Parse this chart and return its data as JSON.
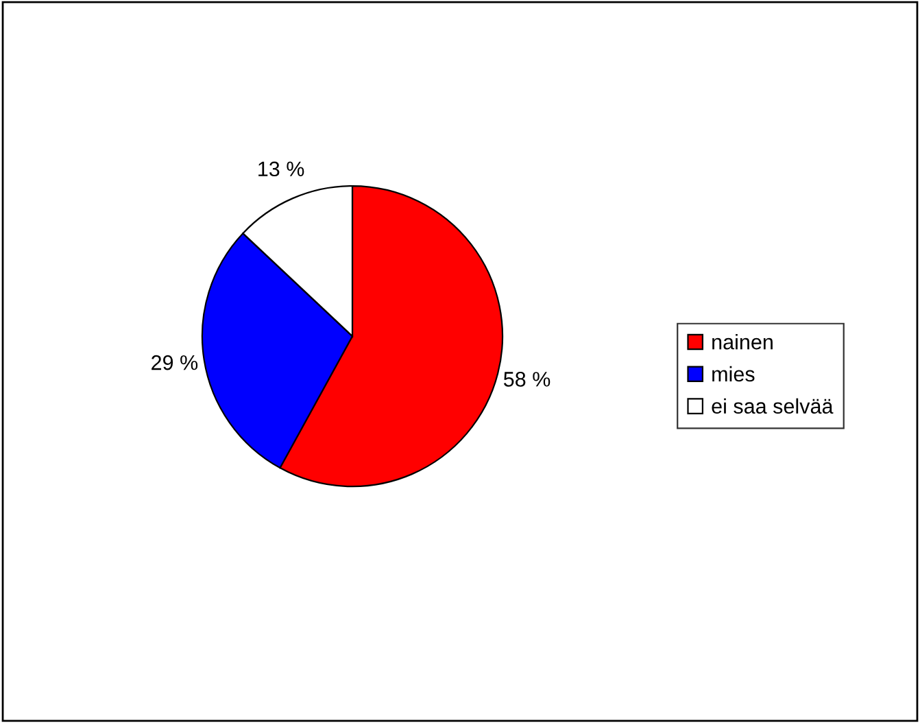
{
  "chart_data": {
    "type": "pie",
    "categories": [
      "nainen",
      "mies",
      "ei saa selvää"
    ],
    "values": [
      58,
      29,
      13
    ],
    "colors": [
      "#ff0000",
      "#0000ff",
      "#ffffff"
    ],
    "value_labels": [
      "58 %",
      "29 %",
      "13 %"
    ],
    "legend": "right"
  }
}
